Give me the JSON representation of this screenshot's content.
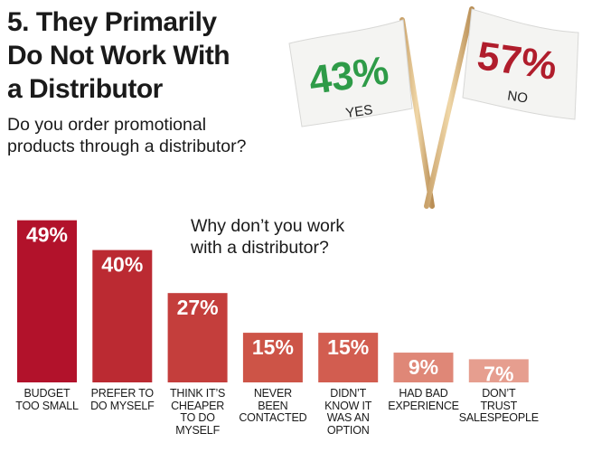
{
  "title_lines": [
    "5. They Primarily",
    "Do Not Work With",
    "a Distributor"
  ],
  "subtitle_lines": [
    "Do you order promotional",
    "products through a distributor?"
  ],
  "question2_lines": [
    "Why don’t you work",
    "with a distributor?"
  ],
  "flags": {
    "yes": {
      "value": "43%",
      "label": "YES",
      "color": "#2e9b48"
    },
    "no": {
      "value": "57%",
      "label": "NO",
      "color": "#b01d2c"
    }
  },
  "chart_data": {
    "type": "bar",
    "categories": [
      [
        "BUDGET",
        "TOO SMALL"
      ],
      [
        "PREFER TO",
        "DO MYSELF"
      ],
      [
        "THINK IT’S",
        "CHEAPER",
        "TO DO",
        "MYSELF"
      ],
      [
        "NEVER",
        "BEEN",
        "CONTACTED"
      ],
      [
        "DIDN’T",
        "KNOW IT",
        "WAS AN",
        "OPTION"
      ],
      [
        "HAD BAD",
        "EXPERIENCE"
      ],
      [
        "DON’T",
        "TRUST",
        "SALESPEOPLE"
      ]
    ],
    "values": [
      49,
      40,
      27,
      15,
      15,
      9,
      7
    ],
    "value_labels": [
      "49%",
      "40%",
      "27%",
      "15%",
      "15%",
      "9%",
      "7%"
    ],
    "colors": [
      "#b2122b",
      "#bb2a32",
      "#c43e3c",
      "#cd5447",
      "#d25d50",
      "#df8777",
      "#e69e8f"
    ],
    "ylim": [
      0,
      50
    ],
    "grid": false,
    "legend": "none"
  }
}
